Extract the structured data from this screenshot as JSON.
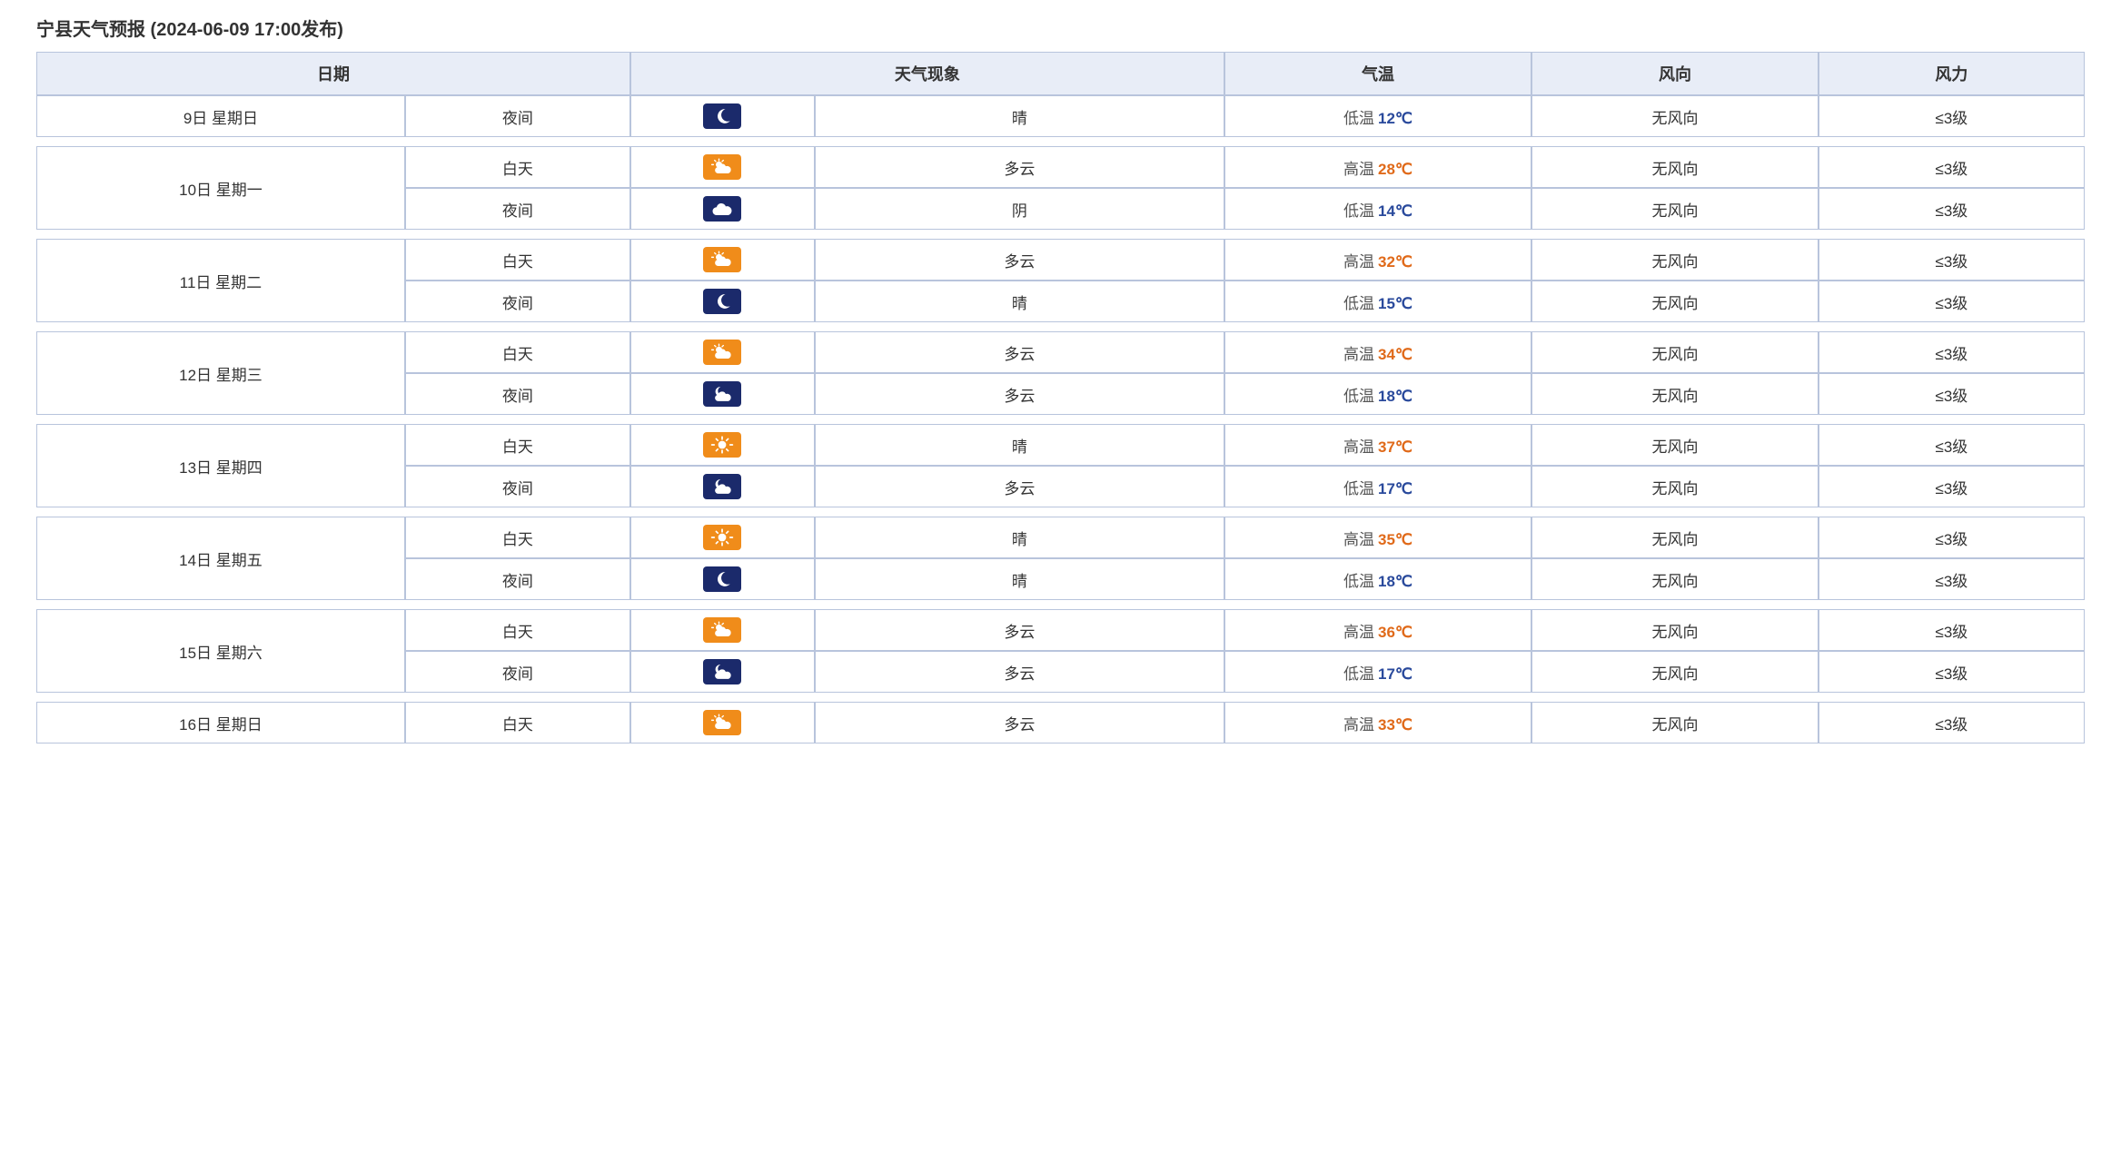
{
  "title": "宁县天气预报 (2024-06-09 17:00发布)",
  "headers": {
    "date": "日期",
    "phenomenon": "天气现象",
    "temperature": "气温",
    "wind_direction": "风向",
    "wind_power": "风力"
  },
  "colors": {
    "header_bg": "#e8edf7",
    "border": "#b8c4dc",
    "high_temp": "#e06a1a",
    "low_temp": "#2a4a9c",
    "icon_day_bg": "#f08c1a",
    "icon_night_bg": "#1b2a6b",
    "icon_fg": "#ffffff"
  },
  "icon_types": {
    "moon": "moon",
    "sun": "sun",
    "sun_cloud": "sun_cloud",
    "moon_cloud": "moon_cloud",
    "cloud": "cloud"
  },
  "days": [
    {
      "date_label": "9日 星期日",
      "rows": [
        {
          "period": "夜间",
          "icon": "moon",
          "icon_bg": "night",
          "phenom": "晴",
          "temp_kind": "low",
          "temp_label": "低温",
          "temp_value": "12℃",
          "wind_dir": "无风向",
          "wind_pow": "≤3级"
        }
      ]
    },
    {
      "date_label": "10日 星期一",
      "rows": [
        {
          "period": "白天",
          "icon": "sun_cloud",
          "icon_bg": "day",
          "phenom": "多云",
          "temp_kind": "high",
          "temp_label": "高温",
          "temp_value": "28℃",
          "wind_dir": "无风向",
          "wind_pow": "≤3级"
        },
        {
          "period": "夜间",
          "icon": "cloud",
          "icon_bg": "night",
          "phenom": "阴",
          "temp_kind": "low",
          "temp_label": "低温",
          "temp_value": "14℃",
          "wind_dir": "无风向",
          "wind_pow": "≤3级"
        }
      ]
    },
    {
      "date_label": "11日 星期二",
      "rows": [
        {
          "period": "白天",
          "icon": "sun_cloud",
          "icon_bg": "day",
          "phenom": "多云",
          "temp_kind": "high",
          "temp_label": "高温",
          "temp_value": "32℃",
          "wind_dir": "无风向",
          "wind_pow": "≤3级"
        },
        {
          "period": "夜间",
          "icon": "moon",
          "icon_bg": "night",
          "phenom": "晴",
          "temp_kind": "low",
          "temp_label": "低温",
          "temp_value": "15℃",
          "wind_dir": "无风向",
          "wind_pow": "≤3级"
        }
      ]
    },
    {
      "date_label": "12日 星期三",
      "rows": [
        {
          "period": "白天",
          "icon": "sun_cloud",
          "icon_bg": "day",
          "phenom": "多云",
          "temp_kind": "high",
          "temp_label": "高温",
          "temp_value": "34℃",
          "wind_dir": "无风向",
          "wind_pow": "≤3级"
        },
        {
          "period": "夜间",
          "icon": "moon_cloud",
          "icon_bg": "night",
          "phenom": "多云",
          "temp_kind": "low",
          "temp_label": "低温",
          "temp_value": "18℃",
          "wind_dir": "无风向",
          "wind_pow": "≤3级"
        }
      ]
    },
    {
      "date_label": "13日 星期四",
      "rows": [
        {
          "period": "白天",
          "icon": "sun",
          "icon_bg": "day",
          "phenom": "晴",
          "temp_kind": "high",
          "temp_label": "高温",
          "temp_value": "37℃",
          "wind_dir": "无风向",
          "wind_pow": "≤3级"
        },
        {
          "period": "夜间",
          "icon": "moon_cloud",
          "icon_bg": "night",
          "phenom": "多云",
          "temp_kind": "low",
          "temp_label": "低温",
          "temp_value": "17℃",
          "wind_dir": "无风向",
          "wind_pow": "≤3级"
        }
      ]
    },
    {
      "date_label": "14日 星期五",
      "rows": [
        {
          "period": "白天",
          "icon": "sun",
          "icon_bg": "day",
          "phenom": "晴",
          "temp_kind": "high",
          "temp_label": "高温",
          "temp_value": "35℃",
          "wind_dir": "无风向",
          "wind_pow": "≤3级"
        },
        {
          "period": "夜间",
          "icon": "moon",
          "icon_bg": "night",
          "phenom": "晴",
          "temp_kind": "low",
          "temp_label": "低温",
          "temp_value": "18℃",
          "wind_dir": "无风向",
          "wind_pow": "≤3级"
        }
      ]
    },
    {
      "date_label": "15日 星期六",
      "rows": [
        {
          "period": "白天",
          "icon": "sun_cloud",
          "icon_bg": "day",
          "phenom": "多云",
          "temp_kind": "high",
          "temp_label": "高温",
          "temp_value": "36℃",
          "wind_dir": "无风向",
          "wind_pow": "≤3级"
        },
        {
          "period": "夜间",
          "icon": "moon_cloud",
          "icon_bg": "night",
          "phenom": "多云",
          "temp_kind": "low",
          "temp_label": "低温",
          "temp_value": "17℃",
          "wind_dir": "无风向",
          "wind_pow": "≤3级"
        }
      ]
    },
    {
      "date_label": "16日 星期日",
      "rows": [
        {
          "period": "白天",
          "icon": "sun_cloud",
          "icon_bg": "day",
          "phenom": "多云",
          "temp_kind": "high",
          "temp_label": "高温",
          "temp_value": "33℃",
          "wind_dir": "无风向",
          "wind_pow": "≤3级"
        }
      ]
    }
  ]
}
